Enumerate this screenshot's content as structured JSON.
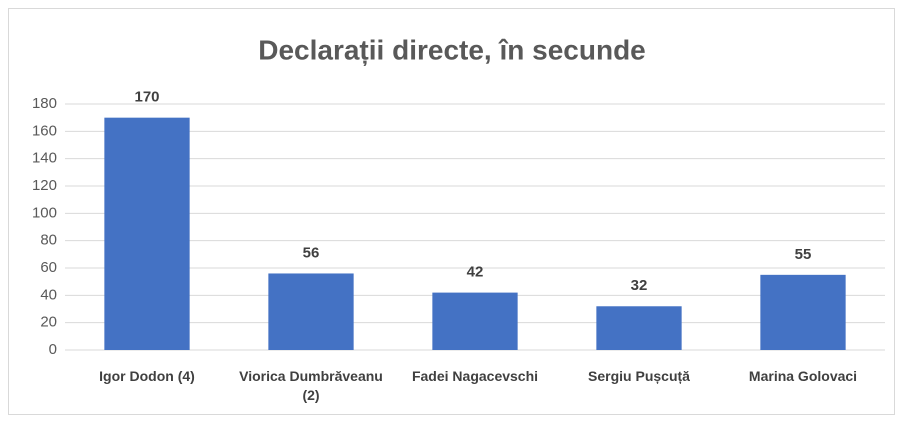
{
  "chart_data": {
    "type": "bar",
    "title": "Declarații directe, în secunde",
    "categories": [
      "Igor Dodon (4)",
      "Viorica Dumbrăveanu (2)",
      "Fadei Nagacevschi",
      "Sergiu Pușcuță",
      "Marina Golovaci"
    ],
    "values": [
      170,
      56,
      42,
      32,
      55
    ],
    "color": "#4472c4",
    "ylim": [
      0,
      180
    ],
    "yticks": [
      0,
      20,
      40,
      60,
      80,
      100,
      120,
      140,
      160,
      180
    ],
    "grid": true
  }
}
